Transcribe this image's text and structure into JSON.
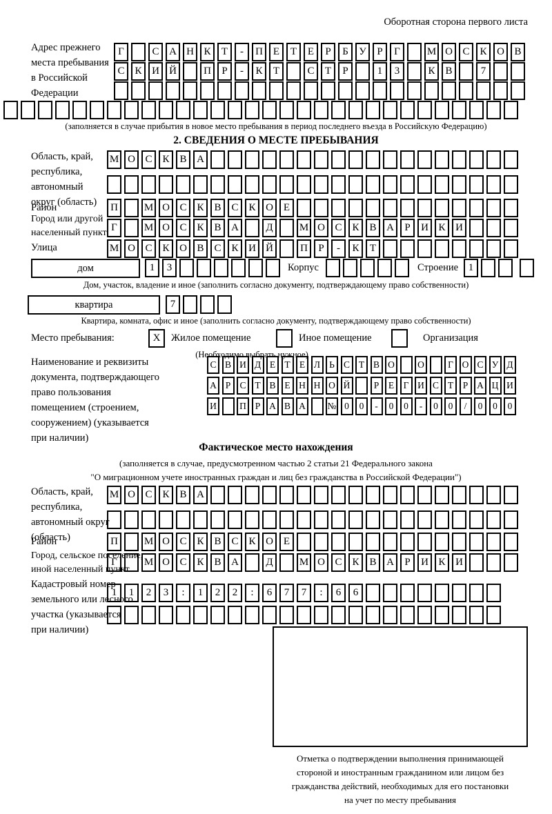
{
  "page": {
    "header": "Оборотная сторона первого листа"
  },
  "prev_address": {
    "label": "Адрес прежнего\nместа пребывания\nв Российской\nФедерации",
    "r1": "Г САНКТ-ПЕТЕРБУРГ МОСКОВ",
    "r2": "СКИЙ ПР-КТ СТР 13 КВ 7  ",
    "r3": "                        ",
    "r4": "                              ",
    "note": "(заполняется в случае прибытия в новое место пребывания в период последнего въезда в Российскую Федерацию)"
  },
  "section2": {
    "title": "2. СВЕДЕНИЯ О МЕСТЕ ПРЕБЫВАНИЯ",
    "region": {
      "label": "Область, край,\nреспублика,\nавтономный\nокруг (область)",
      "r1": "МОСКВА                  ",
      "r2": "                        "
    },
    "district": {
      "label": "Район",
      "r1": "П МОСКВСКОЕ             "
    },
    "city": {
      "label": "Город или другой\nнаселенный пункт",
      "r1": "Г МОСКВА Д МОСКВАРИКИ   "
    },
    "street": {
      "label": "Улица",
      "r1": "МОСКОВСКИЙ ПР-КТ        "
    },
    "house": {
      "box_label": "дом",
      "cells": "13      ",
      "korpus_label": "Корпус",
      "korpus_cells": "     ",
      "stroenie_label": "Строение",
      "stroenie_cells": "1   ",
      "note": "Дом, участок, владение и иное (заполнить согласно документу, подтверждающему право собственности)"
    },
    "apartment": {
      "box_label": "квартира",
      "cells": "7   ",
      "note": "Квартира, комната, офис и иное (заполнить согласно документу, подтверждающему право собственности)"
    },
    "stay_type": {
      "label": "Место пребывания:",
      "options": [
        {
          "label": "Жилое помещение",
          "checked": "X"
        },
        {
          "label": "Иное помещение",
          "checked": ""
        },
        {
          "label": "Организация",
          "checked": ""
        }
      ],
      "note": "(Необходимо выбрать нужное)"
    },
    "document": {
      "label": "Наименование и реквизиты\nдокумента, подтверждающего\nправо пользования\nпомещением (строением,\nсооружением) (указывается\nпри наличии)",
      "r1": "СВИДЕТЕЛЬСТВО О ГОСУД",
      "r2": "АРСТВЕННОЙ РЕГИСТРАЦИ",
      "r3": "И ПРАВА №00-00-00/000"
    }
  },
  "actual_location": {
    "title": "Фактическое место нахождения",
    "note": "(заполняется в случае, предусмотренном частью 2 статьи 21 Федерального закона\n\"О миграционном учете иностранных граждан и лиц без гражданства в Российской Федерации\")",
    "region": {
      "label": "Область, край,\nреспублика,\nавтономный округ\n(область)",
      "r1": "МОСКВА                  ",
      "r2": "                        "
    },
    "district": {
      "label": "Район",
      "r1": "П МОСКВСКОЕ             "
    },
    "city": {
      "label": "Город, сельское поселение,\nиной населенный пункт",
      "r1": "Г МОСКВА Д МОСКВАРИКИ   "
    },
    "cadastre": {
      "label": "Кадастровый номер\nземельного или лесного\nучастка (указывается\nпри наличии)",
      "r1": "1123:122:677:66        ",
      "r2": "                       "
    }
  },
  "confirmation": {
    "caption": "Отметка о подтверждении выполнения принимающей\nстороной и иностранным гражданином или лицом без\nгражданства действий, необходимых для его постановки\nна учет по месту пребывания"
  }
}
